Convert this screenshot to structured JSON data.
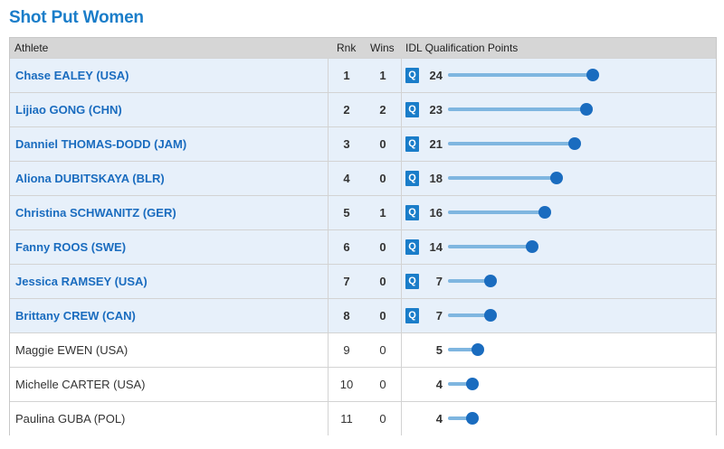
{
  "title": "Shot Put Women",
  "columns": {
    "athlete": "Athlete",
    "rank": "Rnk",
    "wins": "Wins",
    "points": "IDL Qualification Points"
  },
  "qualified_badge": "Q",
  "max_points": 24,
  "colors": {
    "accent": "#1a7dc9",
    "bar": "#7fb6e0",
    "dot": "#1a6cbf",
    "qualified_row": "#e7f0fa"
  },
  "athletes": [
    {
      "name": "Chase EALEY (USA)",
      "rank": "1",
      "wins": "1",
      "points": 24,
      "qualified": true
    },
    {
      "name": "Lijiao GONG (CHN)",
      "rank": "2",
      "wins": "2",
      "points": 23,
      "qualified": true
    },
    {
      "name": "Danniel THOMAS-DODD (JAM)",
      "rank": "3",
      "wins": "0",
      "points": 21,
      "qualified": true
    },
    {
      "name": "Aliona DUBITSKAYA (BLR)",
      "rank": "4",
      "wins": "0",
      "points": 18,
      "qualified": true
    },
    {
      "name": "Christina SCHWANITZ (GER)",
      "rank": "5",
      "wins": "1",
      "points": 16,
      "qualified": true
    },
    {
      "name": "Fanny ROOS (SWE)",
      "rank": "6",
      "wins": "0",
      "points": 14,
      "qualified": true
    },
    {
      "name": "Jessica RAMSEY (USA)",
      "rank": "7",
      "wins": "0",
      "points": 7,
      "qualified": true
    },
    {
      "name": "Brittany CREW (CAN)",
      "rank": "8",
      "wins": "0",
      "points": 7,
      "qualified": true
    },
    {
      "name": "Maggie EWEN (USA)",
      "rank": "9",
      "wins": "0",
      "points": 5,
      "qualified": false
    },
    {
      "name": "Michelle CARTER (USA)",
      "rank": "10",
      "wins": "0",
      "points": 4,
      "qualified": false
    },
    {
      "name": "Paulina GUBA (POL)",
      "rank": "11",
      "wins": "0",
      "points": 4,
      "qualified": false
    }
  ]
}
